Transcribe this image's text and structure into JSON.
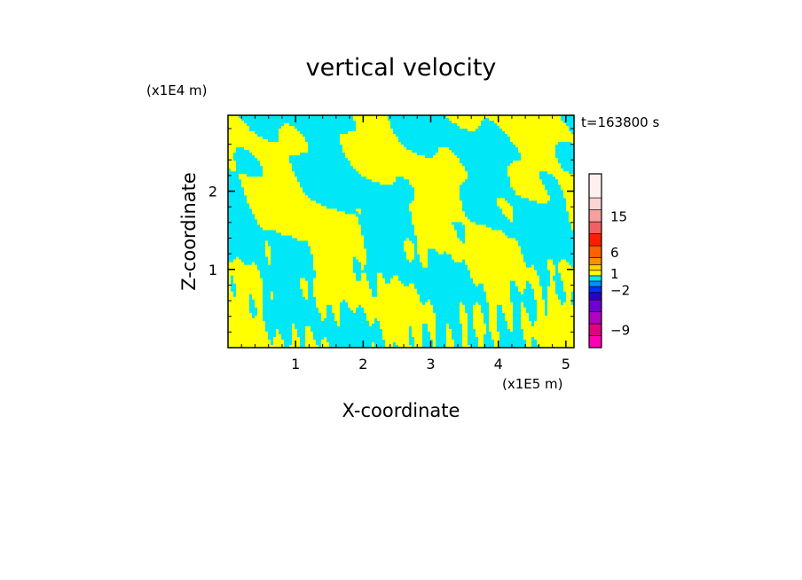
{
  "chart_data": {
    "type": "heatmap",
    "title": "vertical velocity",
    "xlabel": "X-coordinate",
    "ylabel": "Z-coordinate",
    "x_unit": "(x1E5 m)",
    "y_unit": "(x1E4 m)",
    "time_label": "t=163800 s",
    "xlim": [
      0,
      5.12
    ],
    "ylim": [
      0,
      2.97
    ],
    "x_ticks": [
      1,
      2,
      3,
      4,
      5
    ],
    "y_ticks": [
      1,
      2
    ],
    "x_tick_labels": [
      "1",
      "2",
      "3",
      "4",
      "5"
    ],
    "y_tick_labels": [
      "1",
      "2"
    ],
    "field_colors": {
      "negative": "#00e8f8",
      "positive": "#ffff00"
    },
    "colorbar": {
      "levels": [
        {
          "value": -12,
          "color": "#ff00b4"
        },
        {
          "value": -9,
          "color": "#e0007f"
        },
        {
          "value": -7,
          "color": "#b400c0"
        },
        {
          "value": -5,
          "color": "#7000d0"
        },
        {
          "value": -3,
          "color": "#2800c8"
        },
        {
          "value": -2,
          "color": "#0030ff"
        },
        {
          "value": -1,
          "color": "#0090ff"
        },
        {
          "value": 0,
          "color": "#00e8f8"
        },
        {
          "value": 1,
          "color": "#ffff00"
        },
        {
          "value": 2,
          "color": "#ffd400"
        },
        {
          "value": 4,
          "color": "#ff9000"
        },
        {
          "value": 6,
          "color": "#ff6000"
        },
        {
          "value": 9,
          "color": "#ff1e00"
        },
        {
          "value": 12,
          "color": "#f06060"
        },
        {
          "value": 15,
          "color": "#f8a0a0"
        },
        {
          "value": 20,
          "color": "#fbd4d4"
        },
        {
          "value": 25,
          "color": "#fff0f0"
        }
      ],
      "tick_labels": [
        {
          "value": 15,
          "label": "15"
        },
        {
          "value": 6,
          "label": "6"
        },
        {
          "value": 1,
          "label": "1"
        },
        {
          "value": -2,
          "label": "−2"
        },
        {
          "value": -9,
          "label": "−9"
        }
      ]
    }
  }
}
